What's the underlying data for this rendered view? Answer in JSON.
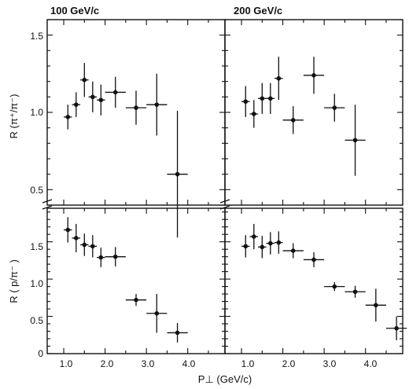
{
  "chart_data": [
    {
      "type": "scatter",
      "panel": "top-left",
      "title": "100 GeV/c",
      "ylabel": "R (π⁺/π⁻)",
      "xlabel": "",
      "xlim": [
        0.6,
        4.9
      ],
      "ylim": [
        0.4,
        1.6
      ],
      "yticks": [
        0.5,
        1.0,
        1.5
      ],
      "ytick_labels": [
        "0.5",
        "1.0",
        "1.5"
      ],
      "xticks": [
        1.0,
        2.0,
        3.0,
        4.0
      ],
      "points": [
        {
          "x": 1.1,
          "y": 0.97,
          "xerr": 0.1,
          "yerr": 0.08
        },
        {
          "x": 1.3,
          "y": 1.05,
          "xerr": 0.1,
          "yerr": 0.08
        },
        {
          "x": 1.5,
          "y": 1.21,
          "xerr": 0.1,
          "yerr": 0.11
        },
        {
          "x": 1.7,
          "y": 1.1,
          "xerr": 0.1,
          "yerr": 0.1
        },
        {
          "x": 1.9,
          "y": 1.08,
          "xerr": 0.1,
          "yerr": 0.1
        },
        {
          "x": 2.25,
          "y": 1.13,
          "xerr": 0.25,
          "yerr": 0.1
        },
        {
          "x": 2.75,
          "y": 1.03,
          "xerr": 0.25,
          "yerr": 0.11
        },
        {
          "x": 3.25,
          "y": 1.05,
          "xerr": 0.25,
          "yerr": 0.2
        },
        {
          "x": 3.75,
          "y": 0.6,
          "xerr": 0.25,
          "yerr": 0.41
        }
      ]
    },
    {
      "type": "scatter",
      "panel": "top-right",
      "title": "200 GeV/c",
      "ylabel": "",
      "xlabel": "",
      "xlim": [
        0.6,
        4.9
      ],
      "ylim": [
        0.4,
        1.6
      ],
      "xticks": [
        1.0,
        2.0,
        3.0,
        4.0
      ],
      "points": [
        {
          "x": 1.1,
          "y": 1.07,
          "xerr": 0.1,
          "yerr": 0.1
        },
        {
          "x": 1.3,
          "y": 0.99,
          "xerr": 0.1,
          "yerr": 0.09
        },
        {
          "x": 1.5,
          "y": 1.09,
          "xerr": 0.1,
          "yerr": 0.1
        },
        {
          "x": 1.7,
          "y": 1.09,
          "xerr": 0.1,
          "yerr": 0.1
        },
        {
          "x": 1.9,
          "y": 1.22,
          "xerr": 0.1,
          "yerr": 0.14
        },
        {
          "x": 2.25,
          "y": 0.95,
          "xerr": 0.25,
          "yerr": 0.09
        },
        {
          "x": 2.75,
          "y": 1.24,
          "xerr": 0.25,
          "yerr": 0.12
        },
        {
          "x": 3.25,
          "y": 1.03,
          "xerr": 0.25,
          "yerr": 0.09
        },
        {
          "x": 3.75,
          "y": 0.82,
          "xerr": 0.25,
          "yerr": 0.23
        }
      ]
    },
    {
      "type": "scatter",
      "panel": "bottom-left",
      "title": "",
      "ylabel": "R ( p/π⁻ )",
      "xlabel": "",
      "xlim": [
        0.6,
        4.9
      ],
      "ylim": [
        0.0,
        1.95
      ],
      "yticks": [
        0.0,
        0.5,
        1.0,
        1.5
      ],
      "ytick_labels": [
        "0",
        "0.5",
        "1.0",
        "1.5"
      ],
      "xticks": [
        1.0,
        2.0,
        3.0,
        4.0
      ],
      "xtick_labels": [
        "1.0",
        "2.0",
        "3.0",
        "4.0"
      ],
      "points": [
        {
          "x": 1.1,
          "y": 1.66,
          "xerr": 0.1,
          "yerr": 0.17
        },
        {
          "x": 1.3,
          "y": 1.55,
          "xerr": 0.1,
          "yerr": 0.19
        },
        {
          "x": 1.5,
          "y": 1.46,
          "xerr": 0.1,
          "yerr": 0.15
        },
        {
          "x": 1.7,
          "y": 1.44,
          "xerr": 0.1,
          "yerr": 0.15
        },
        {
          "x": 1.9,
          "y": 1.29,
          "xerr": 0.1,
          "yerr": 0.13
        },
        {
          "x": 2.25,
          "y": 1.3,
          "xerr": 0.25,
          "yerr": 0.13
        },
        {
          "x": 2.75,
          "y": 0.72,
          "xerr": 0.25,
          "yerr": 0.08
        },
        {
          "x": 3.25,
          "y": 0.54,
          "xerr": 0.25,
          "yerr": 0.26
        },
        {
          "x": 3.75,
          "y": 0.28,
          "xerr": 0.25,
          "yerr": 0.13
        }
      ]
    },
    {
      "type": "scatter",
      "panel": "bottom-right",
      "title": "",
      "ylabel": "",
      "xlabel": "P⊥ (GeV/c)",
      "xlim": [
        0.6,
        4.9
      ],
      "ylim": [
        0.0,
        1.95
      ],
      "xticks": [
        1.0,
        2.0,
        3.0,
        4.0
      ],
      "xtick_labels": [
        "1.0",
        "2.0",
        "3.0",
        "4.0"
      ],
      "points": [
        {
          "x": 1.1,
          "y": 1.44,
          "xerr": 0.1,
          "yerr": 0.15
        },
        {
          "x": 1.3,
          "y": 1.57,
          "xerr": 0.1,
          "yerr": 0.17
        },
        {
          "x": 1.5,
          "y": 1.43,
          "xerr": 0.1,
          "yerr": 0.15
        },
        {
          "x": 1.7,
          "y": 1.48,
          "xerr": 0.1,
          "yerr": 0.15
        },
        {
          "x": 1.9,
          "y": 1.49,
          "xerr": 0.1,
          "yerr": 0.15
        },
        {
          "x": 2.25,
          "y": 1.38,
          "xerr": 0.25,
          "yerr": 0.1
        },
        {
          "x": 2.75,
          "y": 1.26,
          "xerr": 0.25,
          "yerr": 0.1
        },
        {
          "x": 3.25,
          "y": 0.9,
          "xerr": 0.25,
          "yerr": 0.06
        },
        {
          "x": 3.75,
          "y": 0.83,
          "xerr": 0.25,
          "yerr": 0.08
        },
        {
          "x": 4.25,
          "y": 0.65,
          "xerr": 0.25,
          "yerr": 0.22
        },
        {
          "x": 4.75,
          "y": 0.34,
          "xerr": 0.25,
          "yerr": 0.16
        }
      ]
    }
  ]
}
